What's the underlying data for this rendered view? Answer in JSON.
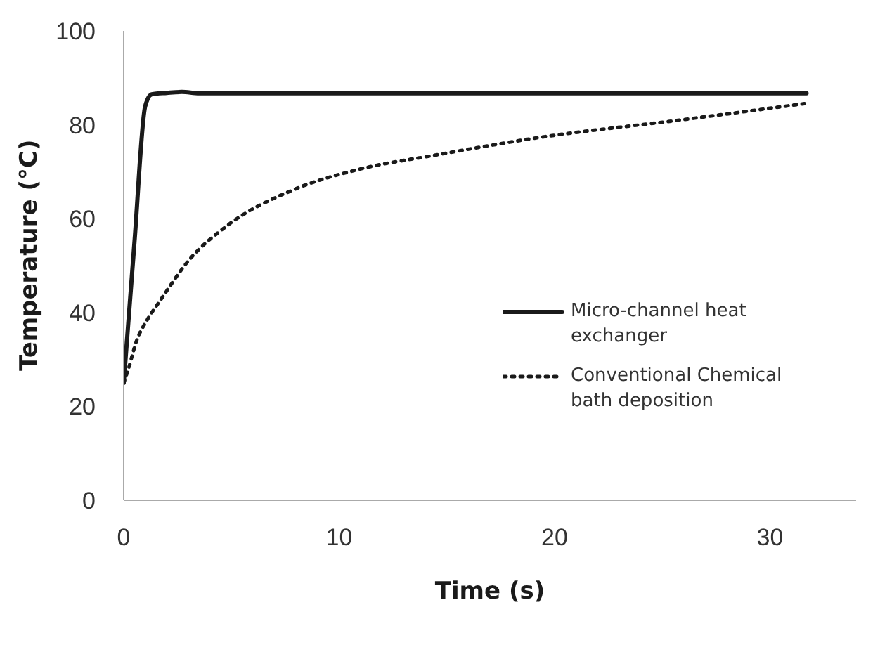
{
  "chart_data": {
    "type": "line",
    "xlabel": "Time (s)",
    "ylabel": "Temperature (°C)",
    "xlim": [
      0,
      34
    ],
    "xticks": [
      0,
      10,
      20,
      30
    ],
    "ylim": [
      0,
      100
    ],
    "yticks": [
      0,
      20,
      40,
      60,
      80,
      100
    ],
    "grid": false,
    "legend": "right",
    "marker": "none",
    "series": [
      {
        "name": "Micro-channel heat exchanger",
        "color": "#1a1a1a",
        "line_style": "solid",
        "x": [
          0,
          0.5,
          1,
          1.3,
          2,
          2.7,
          3.5,
          10,
          20,
          31.7
        ],
        "values": [
          25,
          55,
          84,
          86.5,
          86.8,
          87,
          86.7,
          86.7,
          86.7,
          86.7
        ]
      },
      {
        "name": "Conventional Chemical bath deposition",
        "color": "#1a1a1a",
        "line_style": "dotted",
        "x": [
          0,
          0.2,
          0.6,
          1.1,
          1.7,
          3,
          4.8,
          7.8,
          11,
          14.3,
          19.3,
          25.8,
          31.6
        ],
        "values": [
          25,
          27.7,
          34,
          38.5,
          42.6,
          51,
          58.5,
          66,
          70.6,
          73.4,
          77.3,
          81,
          84.5
        ]
      }
    ]
  }
}
